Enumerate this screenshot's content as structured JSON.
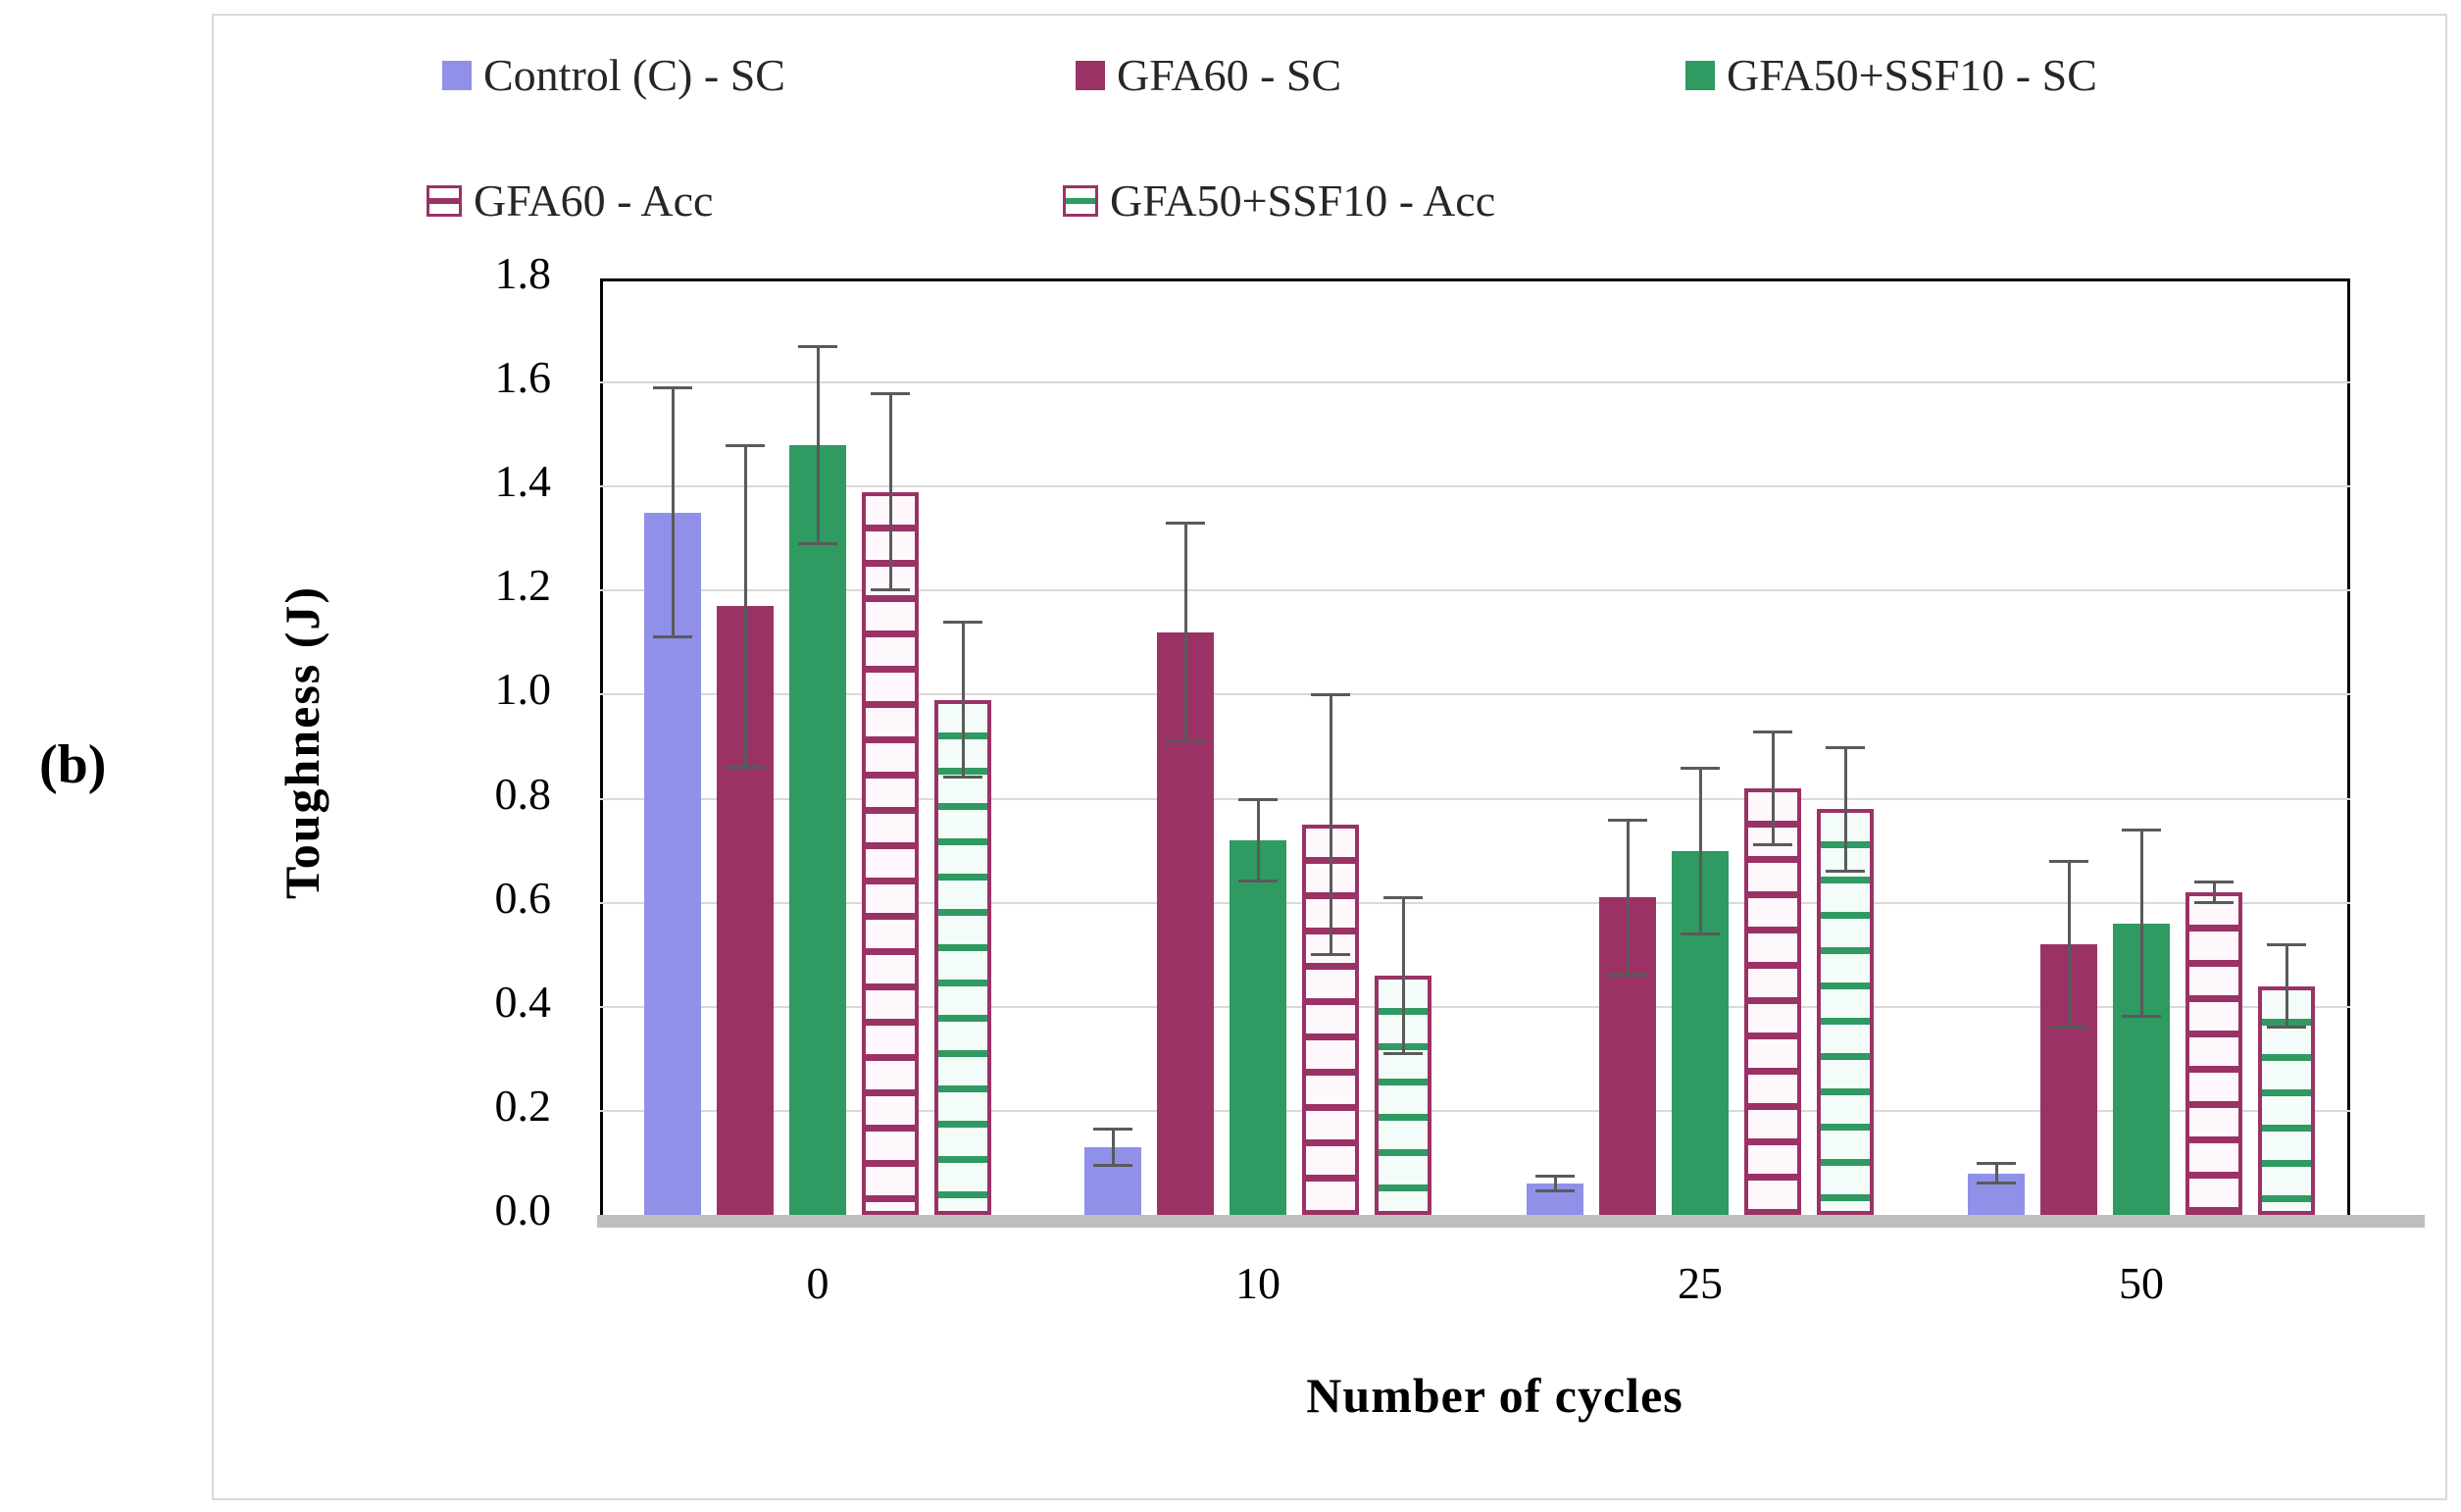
{
  "panel_label": "(b)",
  "colors": {
    "periwinkle": "#9090e8",
    "plum": "#9b3266",
    "green": "#2f9a62",
    "plum_hatch_bg": "#fef7fb",
    "green_hatch_bg": "#f3fcf8",
    "error_bar": "#5a5a5a",
    "gridline": "#d9d9d9",
    "axis_band": "#bfbfbf",
    "plot_border": "#000000",
    "frame_border": "#d9d9d9",
    "legend_text": "#262626"
  },
  "legend": {
    "rows": [
      [
        {
          "label": "Control (C) - SC",
          "swatch": "solid",
          "color": "periwinkle"
        },
        {
          "label": "GFA60 - SC",
          "swatch": "solid",
          "color": "plum"
        },
        {
          "label": "GFA50+SSF10 - SC",
          "swatch": "solid",
          "color": "green"
        }
      ],
      [
        {
          "label": "GFA60 - Acc",
          "swatch": "hatch",
          "color": "plum",
          "line": "plum"
        },
        {
          "label": "GFA50+SSF10 - Acc",
          "swatch": "hatch",
          "color": "plum",
          "line": "green"
        }
      ]
    ]
  },
  "chart_data": {
    "type": "bar",
    "title": "",
    "xlabel": "Number  of cycles",
    "ylabel": "Toughness (J)",
    "categories": [
      "0",
      "10",
      "25",
      "50"
    ],
    "y_ticks": [
      "0.0",
      "0.2",
      "0.4",
      "0.6",
      "0.8",
      "1.0",
      "1.2",
      "1.4",
      "1.6",
      "1.8"
    ],
    "ylim": [
      0,
      1.8
    ],
    "grid": true,
    "legend_position": "top",
    "error_bars": true,
    "series": [
      {
        "name": "Control (C) - SC",
        "fill": "solid",
        "color": "periwinkle",
        "values": [
          1.35,
          0.13,
          0.06,
          0.08
        ],
        "errors": [
          0.24,
          0.035,
          0.015,
          0.02
        ]
      },
      {
        "name": "GFA60 - SC",
        "fill": "solid",
        "color": "plum",
        "values": [
          1.17,
          1.12,
          0.61,
          0.52
        ],
        "errors": [
          0.31,
          0.21,
          0.15,
          0.16
        ]
      },
      {
        "name": "GFA50+SSF10 - SC",
        "fill": "solid",
        "color": "green",
        "values": [
          1.48,
          0.72,
          0.7,
          0.56
        ],
        "errors": [
          0.19,
          0.08,
          0.16,
          0.18
        ]
      },
      {
        "name": "GFA60 - Acc",
        "fill": "hatch",
        "color": "plum",
        "hatch_line": "plum",
        "hatch_bg": "plum_hatch_bg",
        "values": [
          1.39,
          0.75,
          0.82,
          0.62
        ],
        "errors": [
          0.19,
          0.25,
          0.11,
          0.02
        ]
      },
      {
        "name": "GFA50+SSF10 - Acc",
        "fill": "hatch",
        "color": "plum",
        "hatch_line": "green",
        "hatch_bg": "green_hatch_bg",
        "values": [
          0.99,
          0.46,
          0.78,
          0.44
        ],
        "errors": [
          0.15,
          0.15,
          0.12,
          0.08
        ]
      }
    ]
  }
}
